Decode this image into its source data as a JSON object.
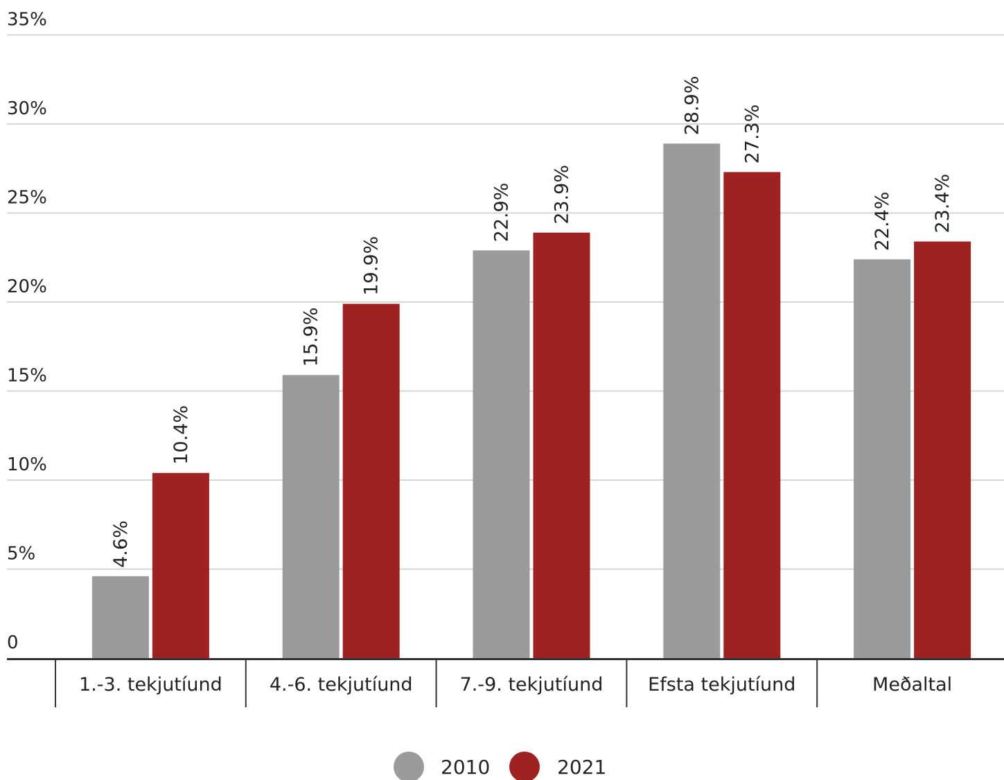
{
  "chart_data": {
    "type": "bar",
    "categories": [
      "1.-3. tekjutíund",
      "4.-6. tekjutíund",
      "7.-9. tekjutíund",
      "Efsta tekjutíund",
      "Meðaltal"
    ],
    "series": [
      {
        "name": "2010",
        "values": [
          4.6,
          15.9,
          22.9,
          28.9,
          22.4
        ],
        "color": "#9b9b9b"
      },
      {
        "name": "2021",
        "values": [
          10.4,
          19.9,
          23.9,
          27.3,
          23.4
        ],
        "color": "#9e2222"
      }
    ],
    "data_labels": [
      [
        "4.6%",
        "15.9%",
        "22.9%",
        "28.9%",
        "22.4%"
      ],
      [
        "10.4%",
        "19.9%",
        "23.9%",
        "27.3%",
        "23.4%"
      ]
    ],
    "yticks": [
      {
        "value": 0,
        "label": "0"
      },
      {
        "value": 5,
        "label": "5%"
      },
      {
        "value": 10,
        "label": "10%"
      },
      {
        "value": 15,
        "label": "15%"
      },
      {
        "value": 20,
        "label": "20%"
      },
      {
        "value": 25,
        "label": "25%"
      },
      {
        "value": 30,
        "label": "30%"
      },
      {
        "value": 35,
        "label": "35%"
      }
    ],
    "ylim": [
      0,
      35
    ],
    "grid": true,
    "legend_position": "bottom-center",
    "title": "",
    "xlabel": "",
    "ylabel": ""
  }
}
